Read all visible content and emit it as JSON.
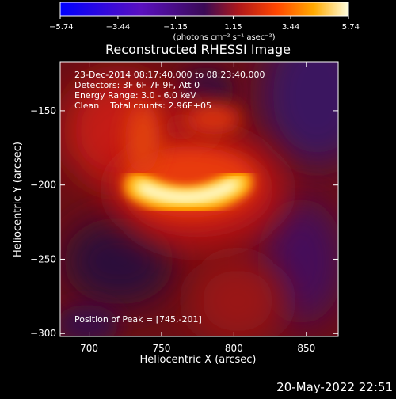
{
  "colorbar": {
    "ticks": [
      "−5.74",
      "−3.44",
      "−1.15",
      "1.15",
      "3.44",
      "5.74"
    ],
    "tick_values": [
      -5.74,
      -3.44,
      -1.15,
      1.15,
      3.44,
      5.74
    ],
    "unit_label": "(photons cm⁻² s⁻¹ asec⁻²)",
    "range": [
      -5.74,
      5.74
    ]
  },
  "chart_data": {
    "type": "heatmap",
    "title": "Reconstructed RHESSI Image",
    "xlabel": "Heliocentric X (arcsec)",
    "ylabel": "Heliocentric Y (arcsec)",
    "xlim": [
      680,
      872
    ],
    "ylim": [
      -302,
      -117
    ],
    "x_ticks": [
      "700",
      "750",
      "800",
      "850"
    ],
    "x_tick_values": [
      700,
      750,
      800,
      850
    ],
    "y_ticks": [
      "−150",
      "−200",
      "−250",
      "−300"
    ],
    "y_tick_values": [
      -150,
      -200,
      -250,
      -300
    ],
    "info_lines": [
      "23-Dec-2014 08:17:40.000 to 08:23:40.000",
      "Detectors: 3F 6F 7F 9F, Att 0",
      "Energy Range: 3.0 - 6.0 keV",
      "Clean    Total counts: 2.96E+05"
    ],
    "peak_label": "Position of Peak = [745,-201]",
    "peak": [
      745,
      -201
    ]
  },
  "timestamp": "20-May-2022 22:51"
}
